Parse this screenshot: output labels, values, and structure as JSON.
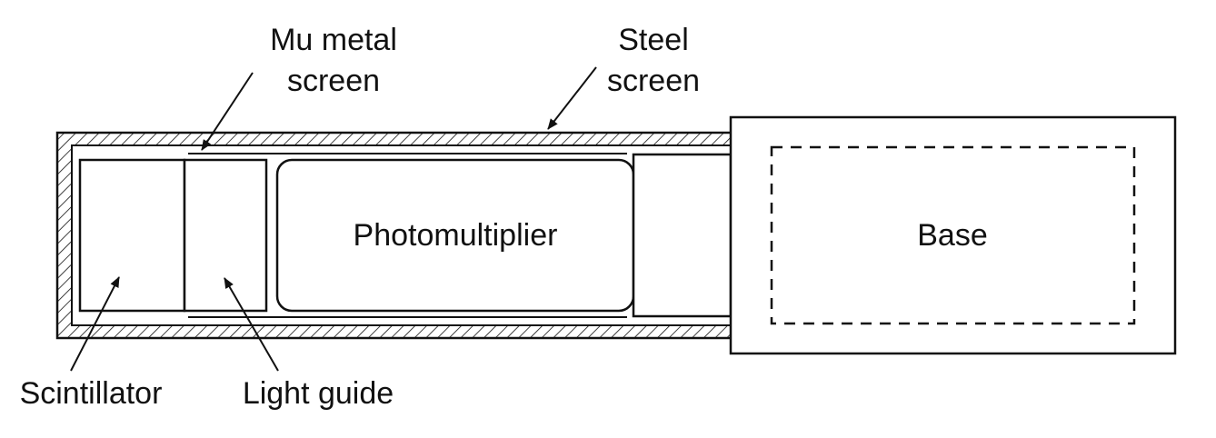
{
  "labels": {
    "mu_metal_line1": "Mu metal",
    "mu_metal_line2": "screen",
    "steel_line1": "Steel",
    "steel_line2": "screen",
    "photomultiplier": "Photomultiplier",
    "base": "Base",
    "scintillator": "Scintillator",
    "light_guide": "Light guide"
  },
  "colors": {
    "ink": "#111111",
    "background": "#ffffff"
  }
}
